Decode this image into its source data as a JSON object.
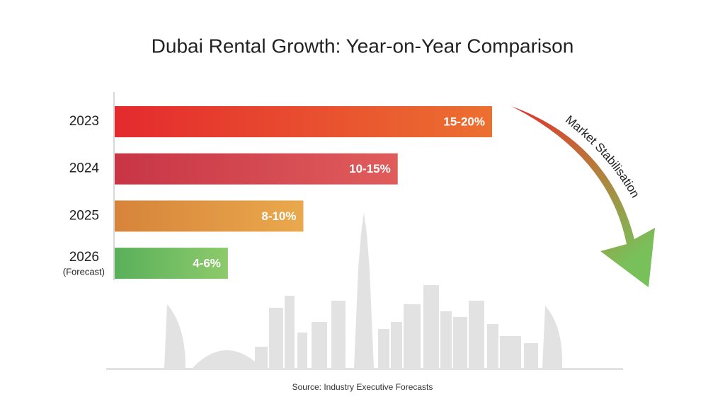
{
  "chart_data": {
    "type": "range-bar",
    "title": "Dubai Rental Growth: Year-on-Year Comparison",
    "categories": [
      "2023",
      "2024",
      "2025",
      "2026"
    ],
    "forecast_label": "(Forecast)",
    "low": [
      15,
      10,
      8,
      4
    ],
    "high": [
      20,
      15,
      10,
      6
    ],
    "value_labels": [
      "15-20%",
      "10-15%",
      "8-10%",
      "4-6%"
    ],
    "colors": [
      [
        "#e42a2e",
        "#ec7030"
      ],
      [
        "#c83546",
        "#e05d5c"
      ],
      [
        "#d6843a",
        "#eaa94c"
      ],
      [
        "#59b05a",
        "#8dca6b"
      ]
    ],
    "annotation": "Market Stabilisation",
    "source": "Source: Industry Executive Forecasts"
  }
}
